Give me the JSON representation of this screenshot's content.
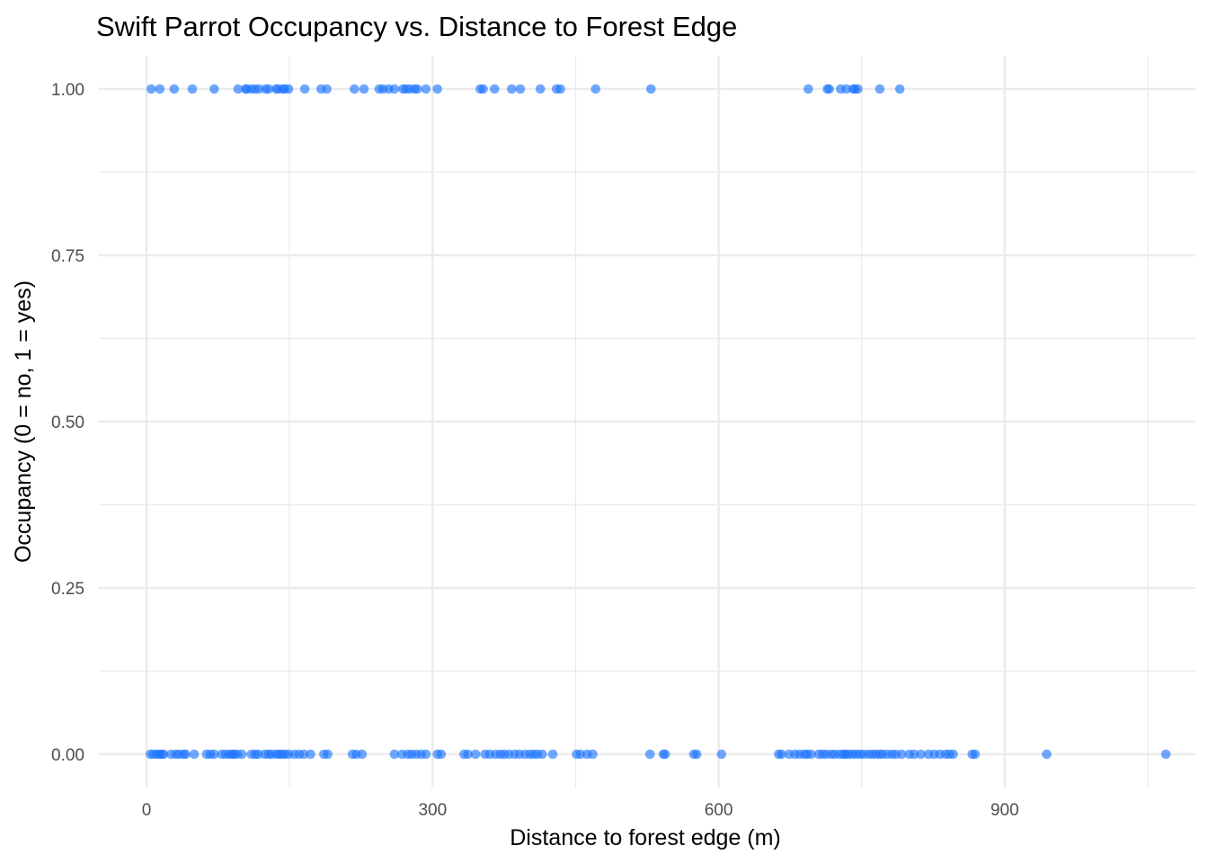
{
  "chart_data": {
    "type": "scatter",
    "title": "Swift Parrot Occupancy vs. Distance to Forest Edge",
    "xlabel": "Distance to forest edge (m)",
    "ylabel": "Occupancy (0 = no, 1 = yes)",
    "xlim": [
      -50,
      1100
    ],
    "ylim": [
      -0.05,
      1.05
    ],
    "x_ticks": [
      0,
      300,
      600,
      900
    ],
    "x_tick_labels": [
      "0",
      "300",
      "600",
      "900"
    ],
    "y_ticks": [
      0,
      0.25,
      0.5,
      0.75,
      1
    ],
    "y_tick_labels": [
      "0.00",
      "0.25",
      "0.50",
      "0.75",
      "1.00"
    ],
    "grid": true,
    "legend": "none",
    "point_color": "#1a73ff",
    "series": [
      {
        "y": 1,
        "x": [
          5,
          14,
          29,
          48,
          71,
          96,
          104,
          105,
          110,
          114,
          118,
          125,
          128,
          136,
          138,
          143,
          145,
          149,
          166,
          183,
          189,
          218,
          228,
          244,
          248,
          254,
          260,
          269,
          272,
          276,
          281,
          284,
          293,
          305,
          350,
          353,
          365,
          383,
          392,
          413,
          430,
          434,
          471,
          529,
          694,
          714,
          716,
          728,
          734,
          741,
          743,
          746,
          769,
          790
        ]
      },
      {
        "y": 0,
        "x": [
          4,
          7,
          11,
          13,
          16,
          18,
          26,
          31,
          34,
          39,
          41,
          50,
          63,
          67,
          71,
          79,
          83,
          87,
          90,
          92,
          95,
          100,
          110,
          114,
          117,
          124,
          128,
          131,
          136,
          139,
          142,
          145,
          149,
          155,
          160,
          165,
          172,
          186,
          190,
          216,
          220,
          226,
          260,
          268,
          274,
          278,
          283,
          288,
          293,
          305,
          309,
          333,
          337,
          345,
          355,
          360,
          366,
          371,
          375,
          380,
          386,
          391,
          397,
          402,
          406,
          410,
          415,
          426,
          451,
          455,
          462,
          468,
          528,
          542,
          544,
          574,
          577,
          603,
          663,
          666,
          674,
          680,
          685,
          690,
          693,
          697,
          705,
          709,
          713,
          718,
          722,
          727,
          731,
          733,
          736,
          740,
          744,
          748,
          752,
          757,
          761,
          765,
          769,
          772,
          777,
          782,
          786,
          792,
          800,
          805,
          812,
          820,
          826,
          832,
          838,
          842,
          846,
          866,
          869,
          944,
          1069
        ]
      }
    ]
  }
}
